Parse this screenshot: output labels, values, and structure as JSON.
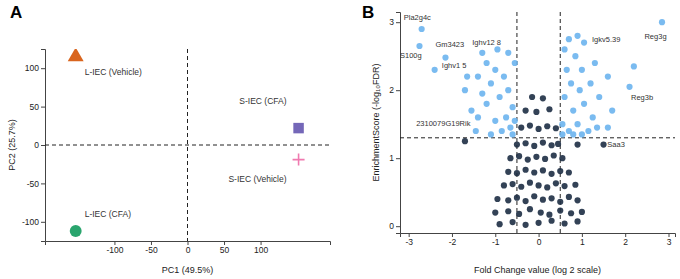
{
  "chart_data": [
    {
      "type": "scatter",
      "title": "A",
      "x_label": "PC1 (49.5%)",
      "y_label": "PC2 (25.7%)",
      "xlim": [
        -195,
        195
      ],
      "xticks": [
        -100,
        -50,
        0,
        50,
        100
      ],
      "ylim": [
        -125,
        125
      ],
      "yticks": [
        -100,
        -50,
        0,
        50,
        100
      ],
      "reference_lines": {
        "x": [
          0
        ],
        "y": [
          0
        ]
      },
      "series": [
        {
          "name": "L-IEC (Vehicle)",
          "color": "#d9651e",
          "marker": "triangle",
          "x": [
            -153
          ],
          "values": [
            115
          ]
        },
        {
          "name": "L-IEC (CFA)",
          "color": "#2aa56e",
          "marker": "circle",
          "x": [
            -153
          ],
          "values": [
            -112
          ]
        },
        {
          "name": "S-IEC (CFA)",
          "color": "#7467b8",
          "marker": "square",
          "x": [
            152
          ],
          "values": [
            22
          ]
        },
        {
          "name": "S-IEC (Vehicle)",
          "color": "#f07ab0",
          "marker": "plus",
          "x": [
            152
          ],
          "values": [
            -19
          ]
        }
      ]
    },
    {
      "type": "scatter",
      "title": "B",
      "x_label": "Fold Change value (log 2 scale)",
      "y_label": "EnrichmentScore (-log₁₀FDR)",
      "xlim": [
        -3.2,
        3.15
      ],
      "xticks": [
        -3,
        -2,
        -1,
        0,
        1,
        2,
        3
      ],
      "ylim": [
        -0.1,
        3.15
      ],
      "yticks": [
        0,
        1,
        2,
        3
      ],
      "reference_lines": {
        "x": [
          -0.5,
          0.5
        ],
        "y": [
          1.3
        ]
      },
      "series": [
        {
          "color": "#1d2d44",
          "marker": "circle",
          "x": [
            -0.9,
            -0.6,
            -0.3,
            0,
            0.3,
            0.6,
            0.9,
            -1.0,
            -0.7,
            -0.45,
            -0.2,
            0.05,
            0.25,
            0.5,
            0.75,
            1.0,
            -0.95,
            -0.7,
            -0.5,
            -0.3,
            -0.1,
            0.1,
            0.3,
            0.5,
            0.7,
            0.9,
            -0.8,
            -0.6,
            -0.4,
            -0.2,
            0,
            0.2,
            0.4,
            0.6,
            0.85,
            -0.7,
            -0.5,
            -0.3,
            -0.1,
            0.1,
            0.3,
            0.5,
            0.7,
            -0.65,
            -0.45,
            -0.25,
            -0.05,
            0.15,
            0.35,
            0.55,
            -0.5,
            -0.3,
            -0.1,
            0.1,
            0.3,
            0.45,
            -1.7,
            0.9,
            1.5,
            -0.4,
            -0.2,
            0,
            0.2,
            0.4,
            -0.3,
            -0.05,
            0.25,
            -0.15,
            0.1
          ],
          "values": [
            0.03,
            0.06,
            0.02,
            0.05,
            0.08,
            0.04,
            0.07,
            0.2,
            0.22,
            0.18,
            0.25,
            0.2,
            0.17,
            0.23,
            0.19,
            0.21,
            0.4,
            0.38,
            0.42,
            0.37,
            0.44,
            0.39,
            0.41,
            0.36,
            0.43,
            0.38,
            0.6,
            0.62,
            0.58,
            0.64,
            0.6,
            0.57,
            0.63,
            0.59,
            0.61,
            0.8,
            0.78,
            0.83,
            0.79,
            0.82,
            0.77,
            0.81,
            0.79,
            1.0,
            1.03,
            0.98,
            1.02,
            0.99,
            1.04,
            1.0,
            1.2,
            1.22,
            1.18,
            1.23,
            1.19,
            1.21,
            1.25,
            1.2,
            1.2,
            1.45,
            1.48,
            1.43,
            1.47,
            1.44,
            1.7,
            1.68,
            1.72,
            1.9,
            1.88
          ]
        },
        {
          "color": "#6cb4ee",
          "marker": "circle",
          "x": [
            -2.7,
            -2.75,
            -2.15,
            -2.4,
            -1.3,
            -1.55,
            -1.65,
            -1.4,
            -1.2,
            -1.1,
            -1.0,
            -0.9,
            -0.8,
            -0.75,
            -0.7,
            -0.65,
            -0.6,
            -0.55,
            -1.0,
            -1.2,
            -1.4,
            -0.85,
            -0.6,
            -1.1,
            -1.7,
            -0.95,
            -0.7,
            -1.45,
            -0.55,
            -1.3,
            0.55,
            0.6,
            0.65,
            0.7,
            0.75,
            0.8,
            0.85,
            0.9,
            0.95,
            1.0,
            1.05,
            1.05,
            1.15,
            1.2,
            1.25,
            1.3,
            1.4,
            1.6,
            1.6,
            1.7,
            2.1,
            2.2,
            2.85,
            0.6,
            0.7,
            0.55,
            1.0,
            0.8,
            1.35,
            0.9
          ],
          "values": [
            2.9,
            2.65,
            2.48,
            2.3,
            2.55,
            1.7,
            2.2,
            2.2,
            2.4,
            2.1,
            2.3,
            1.9,
            2.2,
            1.6,
            2.0,
            1.45,
            1.75,
            2.4,
            1.55,
            1.8,
            1.6,
            1.4,
            1.35,
            1.35,
            2.0,
            2.6,
            2.55,
            1.4,
            1.55,
            1.95,
            1.5,
            1.9,
            2.3,
            1.4,
            2.1,
            1.7,
            2.5,
            1.5,
            2.0,
            2.3,
            1.8,
            2.7,
            1.4,
            2.1,
            1.6,
            2.4,
            1.9,
            1.45,
            2.2,
            1.7,
            2.05,
            2.35,
            3.0,
            2.6,
            2.75,
            1.35,
            1.35,
            1.35,
            1.45,
            2.8
          ]
        }
      ],
      "annotations": [
        {
          "text": "Pla2g4c",
          "x": -2.8,
          "y": 3.06
        },
        {
          "text": "S100g",
          "x": -2.95,
          "y": 2.5
        },
        {
          "text": "Gm3423",
          "x": -2.05,
          "y": 2.66
        },
        {
          "text": "Ighv1 5",
          "x": -1.95,
          "y": 2.35
        },
        {
          "text": "Ighv12 8",
          "x": -1.2,
          "y": 2.7
        },
        {
          "text": "2310079G19Rik",
          "x": -2.2,
          "y": 1.5
        },
        {
          "text": "Igkv5.39",
          "x": 1.56,
          "y": 2.74
        },
        {
          "text": "Reg3g",
          "x": 2.7,
          "y": 2.78
        },
        {
          "text": "Reg3b",
          "x": 2.39,
          "y": 1.88
        },
        {
          "text": "Saa3",
          "x": 1.79,
          "y": 1.19
        }
      ]
    }
  ]
}
